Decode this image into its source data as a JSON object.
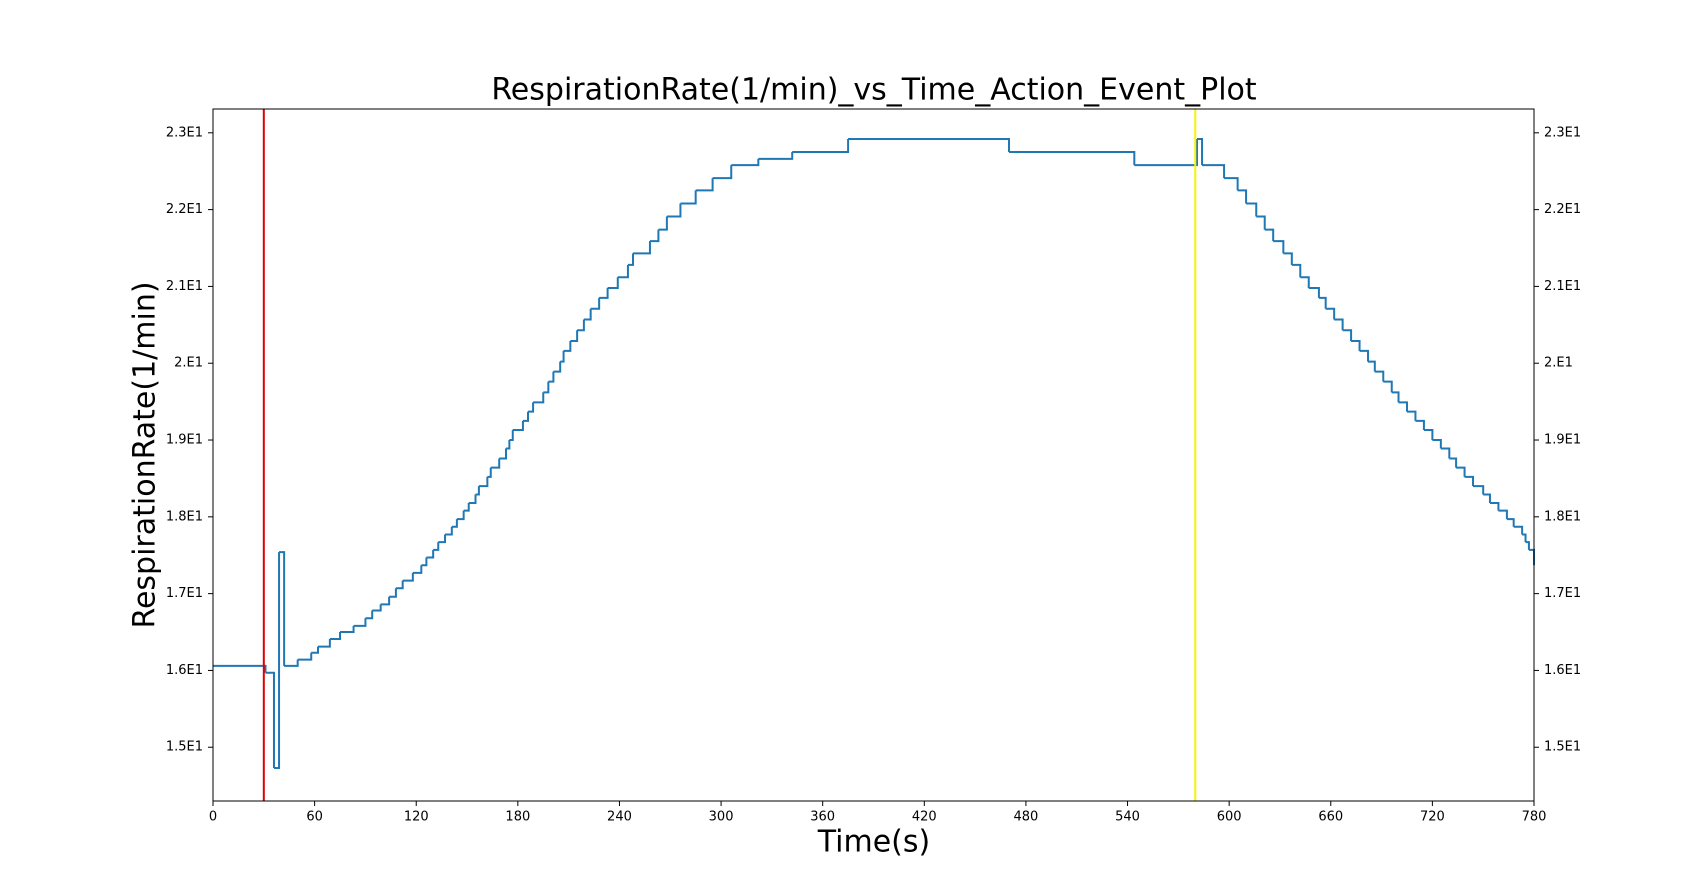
{
  "chart_data": {
    "type": "line",
    "step": "post",
    "title": "RespirationRate(1/min)_vs_Time_Action_Event_Plot",
    "xlabel": "Time(s)",
    "ylabel": "RespirationRate(1/min)",
    "color": "#1f77b4",
    "x": [
      0,
      31,
      36,
      39,
      42,
      50,
      58,
      62,
      69,
      75,
      83,
      90,
      94,
      99,
      104,
      108,
      112,
      118,
      123,
      126,
      130,
      133,
      137,
      141,
      144,
      148,
      151,
      155,
      157,
      162,
      164,
      169,
      173,
      175,
      177,
      183,
      186,
      189,
      195,
      198,
      201,
      205,
      207,
      211,
      215,
      219,
      223,
      228,
      233,
      239,
      245,
      248,
      258,
      263,
      268,
      276,
      285,
      295,
      306,
      322,
      342,
      375,
      470,
      544,
      581,
      584,
      597,
      605,
      610,
      616,
      621,
      626,
      632,
      637,
      642,
      647,
      653,
      657,
      662,
      667,
      672,
      677,
      682,
      686,
      691,
      696,
      700,
      705,
      710,
      715,
      720,
      725,
      730,
      734,
      739,
      744,
      750,
      754,
      759,
      764,
      768,
      773,
      775,
      777,
      780
    ],
    "values": [
      16.06,
      15.97,
      14.73,
      17.54,
      16.06,
      16.14,
      16.23,
      16.31,
      16.41,
      16.5,
      16.58,
      16.68,
      16.78,
      16.86,
      16.96,
      17.07,
      17.17,
      17.27,
      17.37,
      17.47,
      17.57,
      17.67,
      17.77,
      17.87,
      17.97,
      18.08,
      18.18,
      18.29,
      18.4,
      18.52,
      18.64,
      18.76,
      18.89,
      19.0,
      19.13,
      19.25,
      19.37,
      19.49,
      19.62,
      19.76,
      19.89,
      20.02,
      20.16,
      20.29,
      20.43,
      20.57,
      20.71,
      20.85,
      20.98,
      21.12,
      21.28,
      21.43,
      21.59,
      21.74,
      21.91,
      22.08,
      22.25,
      22.41,
      22.58,
      22.66,
      22.75,
      22.92,
      22.75,
      22.58,
      22.92,
      22.58,
      22.41,
      22.25,
      22.08,
      21.91,
      21.74,
      21.59,
      21.43,
      21.28,
      21.12,
      20.98,
      20.85,
      20.71,
      20.57,
      20.43,
      20.29,
      20.16,
      20.02,
      19.89,
      19.76,
      19.62,
      19.49,
      19.37,
      19.25,
      19.13,
      19.0,
      18.89,
      18.76,
      18.64,
      18.52,
      18.4,
      18.29,
      18.18,
      18.08,
      17.97,
      17.87,
      17.77,
      17.67,
      17.57,
      17.37
    ],
    "event_lines": [
      {
        "x": 30,
        "color": "#e00000"
      },
      {
        "x": 580,
        "color": "#f5f500"
      }
    ],
    "xlim": [
      0,
      780
    ],
    "xticks": [
      0,
      60,
      120,
      180,
      240,
      300,
      360,
      420,
      480,
      540,
      600,
      660,
      720,
      780
    ],
    "ylim": [
      14.3,
      23.31
    ],
    "yticks": [
      {
        "value": 15,
        "label": "1.5E1"
      },
      {
        "value": 16,
        "label": "1.6E1"
      },
      {
        "value": 17,
        "label": "1.7E1"
      },
      {
        "value": 18,
        "label": "1.8E1"
      },
      {
        "value": 19,
        "label": "1.9E1"
      },
      {
        "value": 20,
        "label": "2.E1"
      },
      {
        "value": 21,
        "label": "2.1E1"
      },
      {
        "value": 22,
        "label": "2.2E1"
      },
      {
        "value": 23,
        "label": "2.3E1"
      }
    ],
    "right_axis_labels": true,
    "grid": false
  }
}
